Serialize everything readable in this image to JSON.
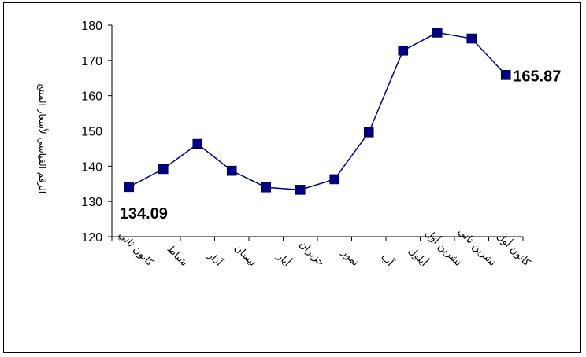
{
  "chart_data": {
    "type": "line",
    "title": "",
    "xlabel": "",
    "ylabel": "الرقم القياسي لأسعار المنتج",
    "ylim": [
      120,
      180
    ],
    "yticks": [
      120,
      130,
      140,
      150,
      160,
      170,
      180
    ],
    "grid": false,
    "categories": [
      "كانون ثاني",
      "شباط",
      "آذار",
      "نيسان",
      "أيار",
      "حزيران",
      "تموز",
      "آب",
      "أيلول",
      "تشرين أول",
      "تشرين ثاني",
      "كانون أول"
    ],
    "series": [
      {
        "values": [
          134.09,
          139.2,
          146.3,
          138.7,
          134.0,
          133.3,
          136.3,
          149.6,
          172.8,
          177.9,
          176.2,
          165.87
        ]
      }
    ],
    "data_labels": [
      {
        "index": 0,
        "text": "134.09"
      },
      {
        "index": 11,
        "text": "165.87"
      }
    ],
    "colors": {
      "line": "#000080",
      "marker": "#000080"
    }
  }
}
